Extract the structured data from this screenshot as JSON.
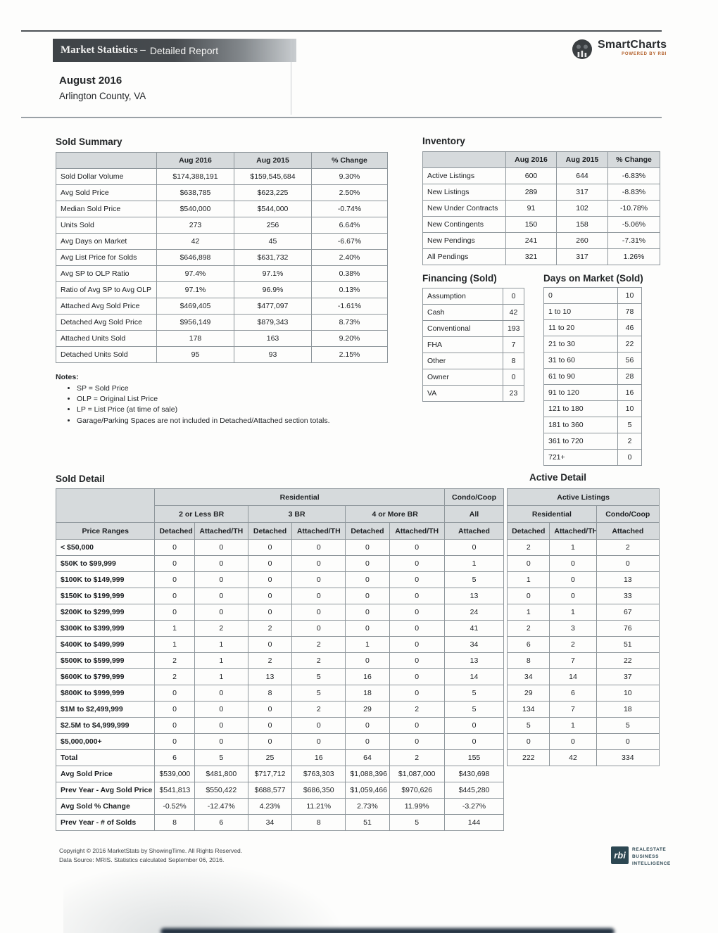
{
  "header": {
    "title_strong": "Market Statistics –",
    "title_light": "Detailed Report",
    "brand_name": "SmartCharts",
    "brand_tagline": "POWERED BY RBI",
    "month": "August 2016",
    "location": "Arlington County, VA"
  },
  "sold_summary": {
    "title": "Sold Summary",
    "columns": [
      "Aug 2016",
      "Aug 2015",
      "% Change"
    ],
    "rows": [
      [
        "Sold Dollar Volume",
        "$174,388,191",
        "$159,545,684",
        "9.30%"
      ],
      [
        "Avg Sold Price",
        "$638,785",
        "$623,225",
        "2.50%"
      ],
      [
        "Median Sold Price",
        "$540,000",
        "$544,000",
        "-0.74%"
      ],
      [
        "Units Sold",
        "273",
        "256",
        "6.64%"
      ],
      [
        "Avg Days on Market",
        "42",
        "45",
        "-6.67%"
      ],
      [
        "Avg List Price for Solds",
        "$646,898",
        "$631,732",
        "2.40%"
      ],
      [
        "Avg SP to OLP Ratio",
        "97.4%",
        "97.1%",
        "0.38%"
      ],
      [
        "Ratio of Avg SP to Avg OLP",
        "97.1%",
        "96.9%",
        "0.13%"
      ],
      [
        "Attached Avg Sold Price",
        "$469,405",
        "$477,097",
        "-1.61%"
      ],
      [
        "Detached Avg Sold Price",
        "$956,149",
        "$879,343",
        "8.73%"
      ],
      [
        "Attached Units Sold",
        "178",
        "163",
        "9.20%"
      ],
      [
        "Detached Units Sold",
        "95",
        "93",
        "2.15%"
      ]
    ]
  },
  "inventory": {
    "title": "Inventory",
    "columns": [
      "Aug 2016",
      "Aug 2015",
      "% Change"
    ],
    "rows": [
      [
        "Active Listings",
        "600",
        "644",
        "-6.83%"
      ],
      [
        "New Listings",
        "289",
        "317",
        "-8.83%"
      ],
      [
        "New Under Contracts",
        "91",
        "102",
        "-10.78%"
      ],
      [
        "New Contingents",
        "150",
        "158",
        "-5.06%"
      ],
      [
        "New Pendings",
        "241",
        "260",
        "-7.31%"
      ],
      [
        "All Pendings",
        "321",
        "317",
        "1.26%"
      ]
    ]
  },
  "financing": {
    "title": "Financing (Sold)",
    "rows": [
      [
        "Assumption",
        "0"
      ],
      [
        "Cash",
        "42"
      ],
      [
        "Conventional",
        "193"
      ],
      [
        "FHA",
        "7"
      ],
      [
        "Other",
        "8"
      ],
      [
        "Owner",
        "0"
      ],
      [
        "VA",
        "23"
      ]
    ]
  },
  "days_on_market": {
    "title": "Days on Market (Sold)",
    "rows": [
      [
        "0",
        "10"
      ],
      [
        "1 to 10",
        "78"
      ],
      [
        "11 to 20",
        "46"
      ],
      [
        "21 to 30",
        "22"
      ],
      [
        "31 to 60",
        "56"
      ],
      [
        "61 to 90",
        "28"
      ],
      [
        "91 to 120",
        "16"
      ],
      [
        "121 to 180",
        "10"
      ],
      [
        "181 to 360",
        "5"
      ],
      [
        "361 to 720",
        "2"
      ],
      [
        "721+",
        "0"
      ]
    ]
  },
  "notes": {
    "title": "Notes:",
    "items": [
      "SP = Sold Price",
      "OLP = Original List Price",
      "LP = List Price (at time of sale)",
      "Garage/Parking Spaces are not included in Detached/Attached section totals."
    ]
  },
  "sold_detail": {
    "title": "Sold Detail",
    "active_title": "Active Detail",
    "groups": {
      "residential": "Residential",
      "condo": "Condo/Coop",
      "active": "Active Listings"
    },
    "subgroups": [
      "2 or Less BR",
      "3 BR",
      "4 or More BR",
      "All",
      "Residential",
      "Condo/Coop"
    ],
    "columns": [
      "Price Ranges",
      "Detached",
      "Attached/TH",
      "Detached",
      "Attached/TH",
      "Detached",
      "Attached/TH",
      "Attached",
      "Detached",
      "Attached/TH",
      "Attached"
    ],
    "rows": [
      [
        "< $50,000",
        "0",
        "0",
        "0",
        "0",
        "0",
        "0",
        "0",
        "2",
        "1",
        "2"
      ],
      [
        "$50K to $99,999",
        "0",
        "0",
        "0",
        "0",
        "0",
        "0",
        "1",
        "0",
        "0",
        "0"
      ],
      [
        "$100K to $149,999",
        "0",
        "0",
        "0",
        "0",
        "0",
        "0",
        "5",
        "1",
        "0",
        "13"
      ],
      [
        "$150K to $199,999",
        "0",
        "0",
        "0",
        "0",
        "0",
        "0",
        "13",
        "0",
        "0",
        "33"
      ],
      [
        "$200K to $299,999",
        "0",
        "0",
        "0",
        "0",
        "0",
        "0",
        "24",
        "1",
        "1",
        "67"
      ],
      [
        "$300K to $399,999",
        "1",
        "2",
        "2",
        "0",
        "0",
        "0",
        "41",
        "2",
        "3",
        "76"
      ],
      [
        "$400K to $499,999",
        "1",
        "1",
        "0",
        "2",
        "1",
        "0",
        "34",
        "6",
        "2",
        "51"
      ],
      [
        "$500K to $599,999",
        "2",
        "1",
        "2",
        "2",
        "0",
        "0",
        "13",
        "8",
        "7",
        "22"
      ],
      [
        "$600K to $799,999",
        "2",
        "1",
        "13",
        "5",
        "16",
        "0",
        "14",
        "34",
        "14",
        "37"
      ],
      [
        "$800K to $999,999",
        "0",
        "0",
        "8",
        "5",
        "18",
        "0",
        "5",
        "29",
        "6",
        "10"
      ],
      [
        "$1M to $2,499,999",
        "0",
        "0",
        "0",
        "2",
        "29",
        "2",
        "5",
        "134",
        "7",
        "18"
      ],
      [
        "$2.5M to $4,999,999",
        "0",
        "0",
        "0",
        "0",
        "0",
        "0",
        "0",
        "5",
        "1",
        "5"
      ],
      [
        "$5,000,000+",
        "0",
        "0",
        "0",
        "0",
        "0",
        "0",
        "0",
        "0",
        "0",
        "0"
      ],
      [
        "Total",
        "6",
        "5",
        "25",
        "16",
        "64",
        "2",
        "155",
        "222",
        "42",
        "334"
      ]
    ],
    "summary_rows": [
      [
        "Avg Sold Price",
        "$539,000",
        "$481,800",
        "$717,712",
        "$763,303",
        "$1,088,396",
        "$1,087,000",
        "$430,698"
      ],
      [
        "Prev Year - Avg Sold Price",
        "$541,813",
        "$550,422",
        "$688,577",
        "$686,350",
        "$1,059,466",
        "$970,626",
        "$445,280"
      ],
      [
        "Avg Sold % Change",
        "-0.52%",
        "-12.47%",
        "4.23%",
        "11.21%",
        "2.73%",
        "11.99%",
        "-3.27%"
      ],
      [
        "Prev Year - # of Solds",
        "8",
        "6",
        "34",
        "8",
        "51",
        "5",
        "144"
      ]
    ]
  },
  "footer": {
    "copyright": "Copyright © 2016 MarketStats by ShowingTime. All Rights Reserved.",
    "source": "Data Source: MRIS. Statistics calculated September 06, 2016.",
    "logo_abbr": "rbi",
    "logo_lines": [
      "REALESTATE",
      "BUSINESS",
      "INTELLIGENCE"
    ]
  }
}
